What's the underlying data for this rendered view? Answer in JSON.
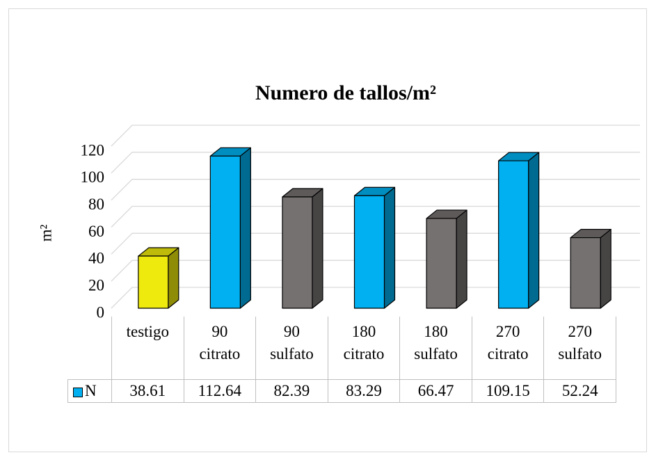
{
  "chart_data": {
    "type": "bar3d",
    "title": "Numero de tallos/m²",
    "y_label": "m²",
    "categories": [
      "testigo",
      "90 citrato",
      "90 sulfato",
      "180 citrato",
      "180 sulfato",
      "270 citrato",
      "270 sulfato"
    ],
    "series": [
      {
        "name": "N",
        "color": "#00b0f0",
        "colors": [
          "#eeea0e",
          "#00b0f0",
          "#767171",
          "#00b0f0",
          "#767171",
          "#00b0f0",
          "#767171"
        ],
        "values": [
          38.61,
          112.64,
          82.39,
          83.29,
          66.47,
          109.15,
          52.24
        ]
      }
    ],
    "ylim": [
      0,
      120
    ],
    "yticks": [
      0,
      20,
      40,
      60,
      80,
      100,
      120
    ],
    "grid": true,
    "legend": "table"
  }
}
